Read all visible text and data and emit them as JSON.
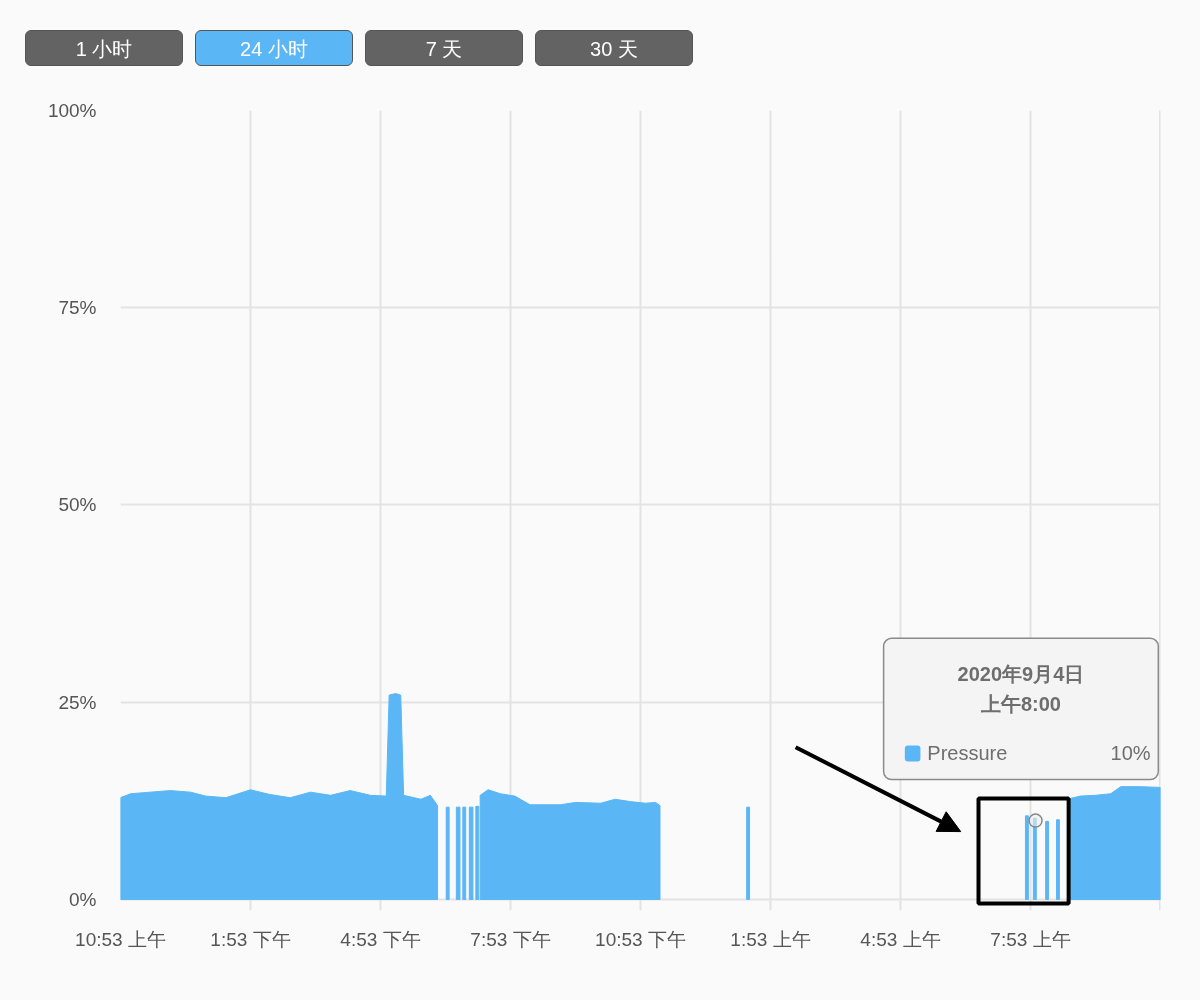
{
  "chart_data": {
    "type": "area",
    "x": [
      "2020-09-03T10:53",
      "2020-09-03T11:07",
      "2020-09-03T11:34",
      "2020-09-03T12:02",
      "2020-09-03T12:30",
      "2020-09-03T12:51",
      "2020-09-03T13:19",
      "2020-09-03T13:53",
      "2020-09-03T14:20",
      "2020-09-03T14:48",
      "2020-09-03T15:16",
      "2020-09-03T15:44",
      "2020-09-03T16:11",
      "2020-09-03T16:39",
      "2020-09-03T17:01",
      "2020-09-03T17:05",
      "2020-09-03T17:14",
      "2020-09-03T17:21",
      "2020-09-03T17:25",
      "2020-09-03T17:49",
      "2020-09-03T18:02",
      "2020-09-03T18:12",
      null,
      "2020-09-03T18:24",
      "2020-09-03T18:28",
      null,
      "2020-09-03T18:38",
      "2020-09-03T18:43",
      null,
      "2020-09-03T18:47",
      "2020-09-03T18:51",
      null,
      "2020-09-03T18:56",
      "2020-09-03T19:01",
      null,
      "2020-09-03T19:05",
      "2020-09-03T19:09",
      null,
      "2020-09-03T19:11",
      "2020-09-03T19:22",
      "2020-09-03T19:39",
      "2020-09-03T19:59",
      "2020-09-03T20:20",
      "2020-09-03T21:02",
      "2020-09-03T21:23",
      "2020-09-03T21:58",
      "2020-09-03T22:18",
      "2020-09-03T22:39",
      "2020-09-03T23:00",
      "2020-09-03T23:14",
      "2020-09-03T23:20",
      null,
      "2020-09-04T01:20",
      "2020-09-04T01:24",
      null,
      "2020-09-04T07:46",
      "2020-09-04T07:50",
      null,
      "2020-09-04T07:57",
      "2020-09-04T08:01",
      null,
      "2020-09-04T08:14",
      "2020-09-04T08:18",
      null,
      "2020-09-04T08:29",
      "2020-09-04T08:33",
      null,
      "2020-09-04T08:48",
      "2020-09-04T09:02",
      "2020-09-04T09:23",
      "2020-09-04T09:44",
      "2020-09-04T09:58",
      "2020-09-04T10:25",
      "2020-09-04T10:53"
    ],
    "series": [
      {
        "name": "Pressure",
        "color": "#5ab6f5",
        "values": [
          12.9,
          13.4,
          13.6,
          13.8,
          13.6,
          13.1,
          12.9,
          13.9,
          13.3,
          12.9,
          13.6,
          13.2,
          13.8,
          13.2,
          13.1,
          25.9,
          26.1,
          25.9,
          13.2,
          12.7,
          13.2,
          11.9,
          null,
          11.7,
          11.7,
          null,
          11.7,
          11.7,
          null,
          11.7,
          11.7,
          null,
          11.7,
          11.7,
          null,
          11.8,
          11.8,
          null,
          13.2,
          13.9,
          13.4,
          13.1,
          12.0,
          12.0,
          12.3,
          12.2,
          12.7,
          12.4,
          12.2,
          12.3,
          11.9,
          null,
          11.7,
          11.7,
          null,
          10.6,
          10.6,
          null,
          10.3,
          10.3,
          null,
          9.9,
          9.9,
          null,
          10.1,
          10.1,
          null,
          12.8,
          13.1,
          13.2,
          13.4,
          14.3,
          14.3,
          14.2
        ]
      },
      {
        "type": "scatter",
        "color": "#eeeeee",
        "marker": "circle",
        "x": [
          "2020-09-04T08:00"
        ],
        "values": [
          10
        ]
      }
    ],
    "xlim": [
      "2020-09-03T10:53",
      "2020-09-04T10:53"
    ],
    "xticks": [
      {
        "value": "2020-09-03T10:53",
        "label": "10:53 上午"
      },
      {
        "value": "2020-09-03T13:53",
        "label": "1:53 下午"
      },
      {
        "value": "2020-09-03T16:53",
        "label": "4:53 下午"
      },
      {
        "value": "2020-09-03T19:53",
        "label": "7:53 下午"
      },
      {
        "value": "2020-09-03T22:53",
        "label": "10:53 下午"
      },
      {
        "value": "2020-09-04T01:53",
        "label": "1:53 上午"
      },
      {
        "value": "2020-09-04T04:53",
        "label": "4:53 上午"
      },
      {
        "value": "2020-09-04T07:53",
        "label": "7:53 上午"
      }
    ],
    "ylim": [
      -1.4,
      100
    ],
    "yticks": [
      {
        "value": 0,
        "label": "0%"
      },
      {
        "value": 25,
        "label": "25%"
      },
      {
        "value": 50,
        "label": "50%"
      },
      {
        "value": 75,
        "label": "75%"
      },
      {
        "value": 100,
        "label": "100%"
      }
    ],
    "grid": true,
    "annotations": [
      "1 小时",
      "24 小时",
      "7 天",
      "30 天",
      "2020年9月4日",
      "上午8:00",
      "10%"
    ]
  }
}
